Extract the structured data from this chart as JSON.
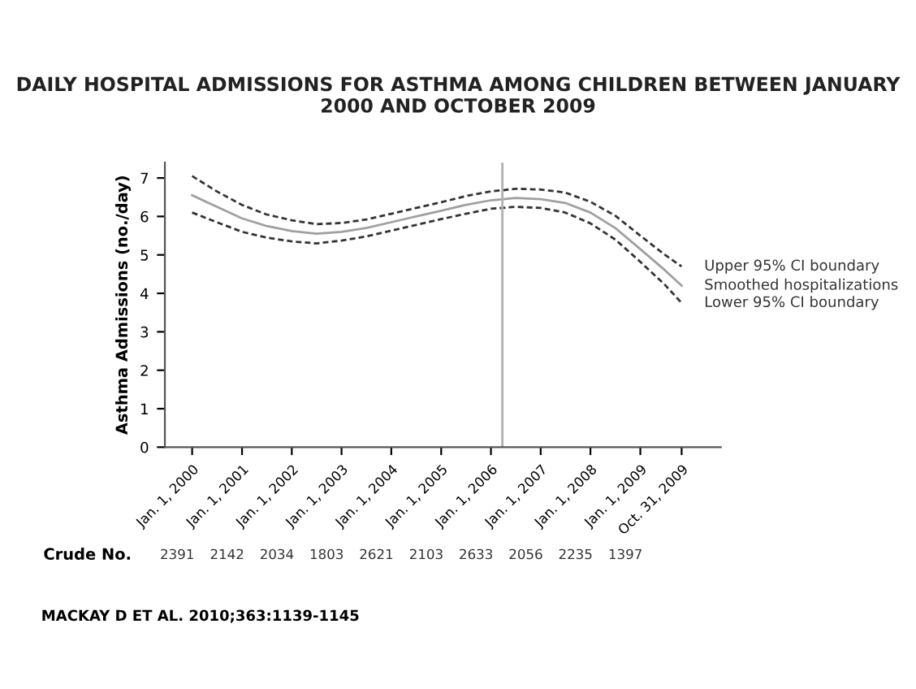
{
  "chart_data": {
    "type": "line",
    "title": "DAILY HOSPITAL ADMISSIONS FOR ASTHMA AMONG CHILDREN BETWEEN JANUARY 2000 AND OCTOBER 2009",
    "ylabel": "Asthma Admissions (no./day)",
    "x": [
      "2000-01-01",
      "2000-07-01",
      "2001-01-01",
      "2001-07-01",
      "2002-01-01",
      "2002-07-01",
      "2003-01-01",
      "2003-07-01",
      "2004-01-01",
      "2004-07-01",
      "2005-01-01",
      "2005-07-01",
      "2006-01-01",
      "2006-07-01",
      "2007-01-01",
      "2007-07-01",
      "2008-01-01",
      "2008-07-01",
      "2009-01-01",
      "2009-07-01",
      "2009-10-31"
    ],
    "series": [
      {
        "name": "Upper 95% CI boundary",
        "color": "#333333",
        "line_style": "dashed",
        "values": [
          7.05,
          6.65,
          6.3,
          6.05,
          5.9,
          5.8,
          5.83,
          5.92,
          6.07,
          6.22,
          6.37,
          6.53,
          6.65,
          6.72,
          6.7,
          6.62,
          6.38,
          6.02,
          5.5,
          5.0,
          4.7
        ]
      },
      {
        "name": "Smoothed hospitalizations",
        "color": "#a0a0a0",
        "line_style": "solid",
        "values": [
          6.55,
          6.25,
          5.95,
          5.75,
          5.62,
          5.55,
          5.6,
          5.7,
          5.85,
          6.0,
          6.15,
          6.3,
          6.42,
          6.48,
          6.45,
          6.35,
          6.1,
          5.7,
          5.15,
          4.6,
          4.2
        ]
      },
      {
        "name": "Lower 95% CI boundary",
        "color": "#333333",
        "line_style": "dashed",
        "values": [
          6.1,
          5.85,
          5.6,
          5.45,
          5.35,
          5.3,
          5.37,
          5.48,
          5.63,
          5.78,
          5.93,
          6.07,
          6.2,
          6.25,
          6.22,
          6.1,
          5.82,
          5.4,
          4.82,
          4.22,
          3.75
        ]
      }
    ],
    "xlim": [
      "1999-06-15",
      "2010-08-15"
    ],
    "xticks": [
      {
        "value": "2000-01-01",
        "label": "Jan. 1, 2000"
      },
      {
        "value": "2001-01-01",
        "label": "Jan. 1, 2001"
      },
      {
        "value": "2002-01-01",
        "label": "Jan. 1, 2002"
      },
      {
        "value": "2003-01-01",
        "label": "Jan. 1, 2003"
      },
      {
        "value": "2004-01-01",
        "label": "Jan. 1, 2004"
      },
      {
        "value": "2005-01-01",
        "label": "Jan. 1, 2005"
      },
      {
        "value": "2006-01-01",
        "label": "Jan. 1, 2006"
      },
      {
        "value": "2007-01-01",
        "label": "Jan. 1, 2007"
      },
      {
        "value": "2008-01-01",
        "label": "Jan. 1, 2008"
      },
      {
        "value": "2009-01-01",
        "label": "Jan. 1, 2009"
      },
      {
        "value": "2009-10-31",
        "label": "Oct. 31, 2009"
      }
    ],
    "ylim": [
      0,
      7.4
    ],
    "yticks": [
      0,
      1,
      2,
      3,
      4,
      5,
      6,
      7
    ],
    "ref_lines": [
      {
        "axis": "x",
        "value": "2006-03-26",
        "color": "#b0b0b0",
        "line_style": "solid"
      }
    ],
    "grid": false,
    "legend": false,
    "marker": "none",
    "annotations": [
      "Crude No.",
      "2391",
      "2142",
      "2034",
      "1803",
      "2621",
      "2103",
      "2633",
      "2056",
      "2235",
      "1397",
      "MACKAY D ET AL. 2010;363:1139-1145"
    ]
  }
}
